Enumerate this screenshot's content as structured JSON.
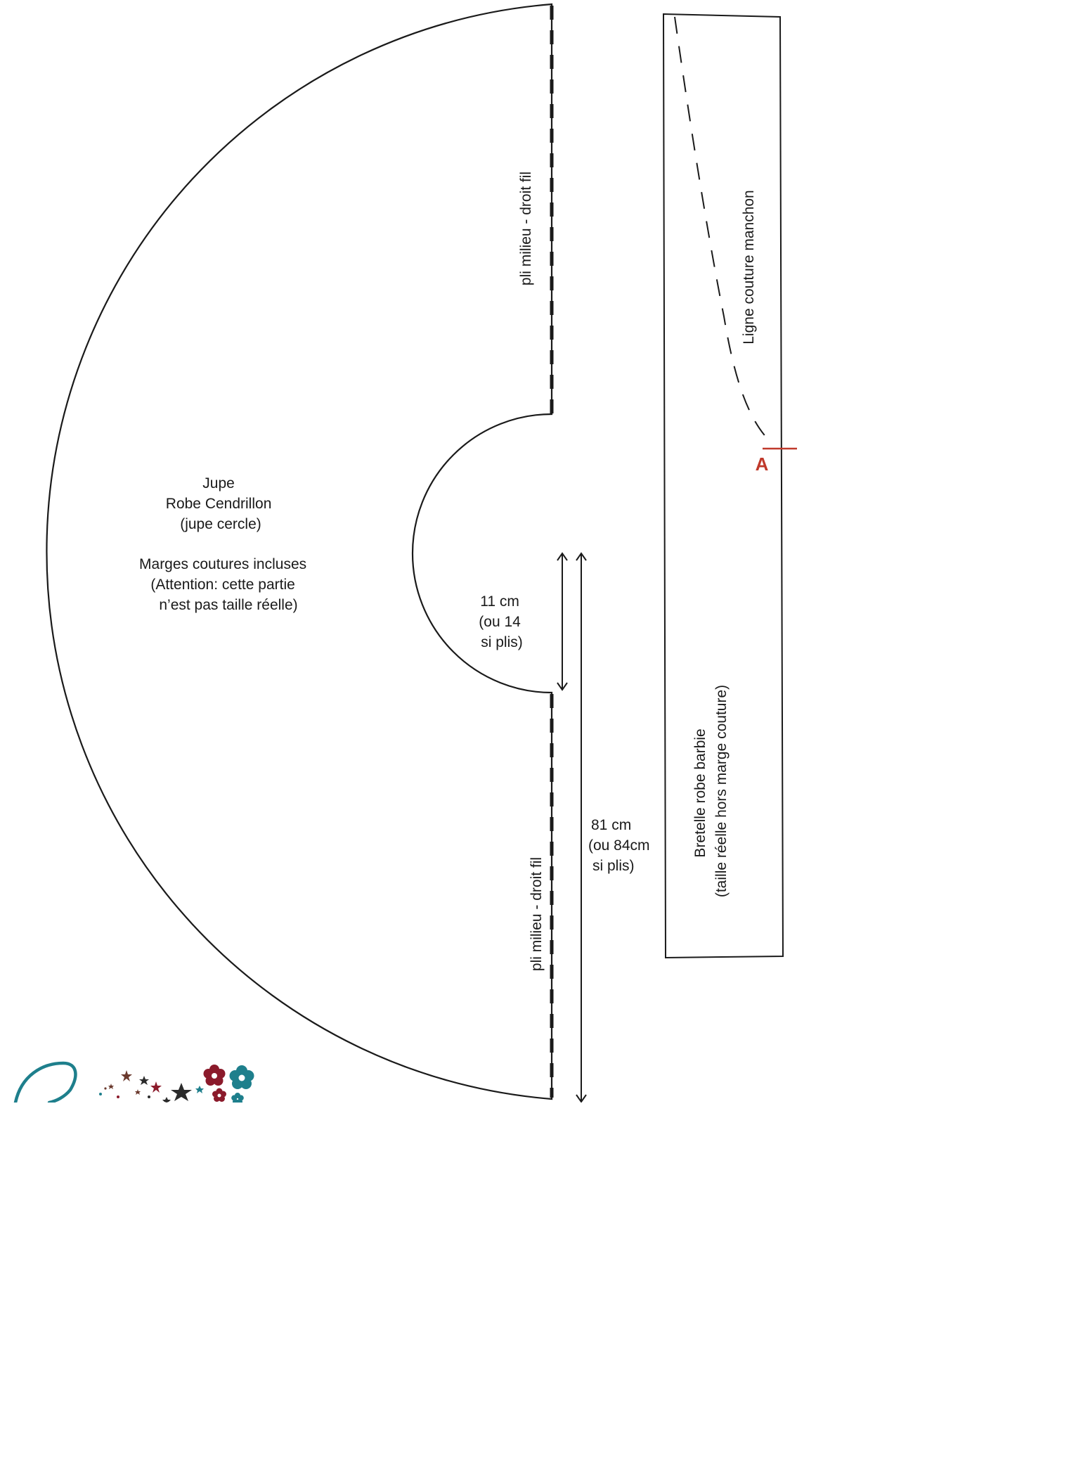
{
  "skirt": {
    "title_lines": [
      "Jupe",
      "Robe Cendrillon",
      "(jupe cercle)"
    ],
    "note_lines": [
      "Marges coutures incluses",
      "(Attention: cette partie",
      "n’est pas taille réelle)"
    ],
    "fold_label": "pli milieu - droit fil",
    "waist_measure_lines": [
      "11 cm",
      "(ou 14",
      "si plis)"
    ],
    "length_measure_lines": [
      "81 cm",
      "(ou 84cm",
      " si plis)"
    ]
  },
  "strap": {
    "title_line_1": "Bretelle robe barbie",
    "title_line_2": "(taille réelle hors marge couture)",
    "seam_label": "Ligne couture manchon",
    "marker_label": "A"
  },
  "colors": {
    "line": "#1a1a1a",
    "marker": "#c0392b",
    "logo_teal": "#1e7f8c",
    "logo_red": "#8b1a2b",
    "logo_dark": "#2b2b2b",
    "logo_brown": "#6b3a2e"
  }
}
